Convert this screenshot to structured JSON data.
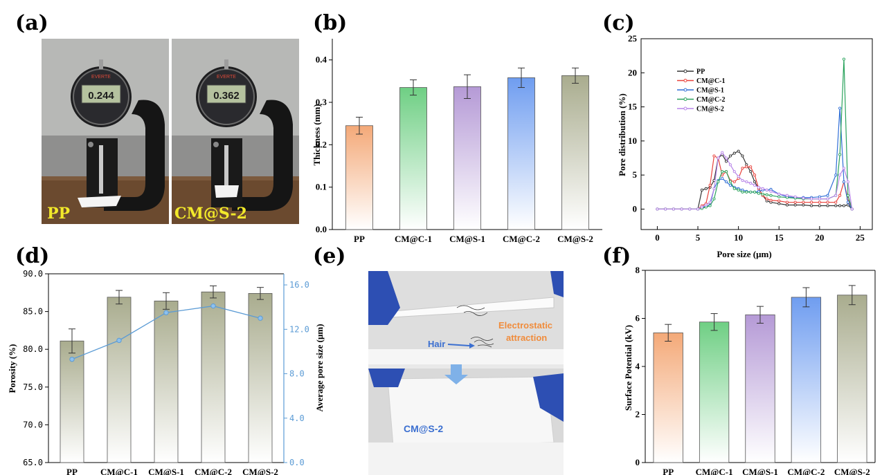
{
  "panels": {
    "a": {
      "label": "(a)",
      "photo_labels": [
        "PP",
        "CM@S-2"
      ],
      "gauge_readings": [
        "0.244",
        "0.362"
      ],
      "gauge_brand": "EVERTE"
    },
    "e": {
      "label": "(e)",
      "annotations": [
        "Electrostatic",
        "attraction",
        "Hair",
        "CM@S-2"
      ]
    }
  },
  "colors": {
    "pp": "#f4a978",
    "cmc1": "#6fcf84",
    "cms1": "#b59ad6",
    "cmc2": "#6f9df0",
    "cms2": "#a9ac8e",
    "line_blue": "#5b9bd5"
  },
  "chart_data": [
    {
      "id": "b",
      "label": "(b)",
      "type": "bar",
      "categories": [
        "PP",
        "CM@C-1",
        "CM@S-1",
        "CM@C-2",
        "CM@S-2"
      ],
      "values": [
        0.245,
        0.335,
        0.337,
        0.358,
        0.363
      ],
      "errors": [
        0.02,
        0.018,
        0.028,
        0.023,
        0.018
      ],
      "ylabel": "Thickness (mm)",
      "ylim": [
        0,
        0.45
      ],
      "yticks": [
        "0.0",
        "0.1",
        "0.2",
        "0.3",
        "0.4"
      ]
    },
    {
      "id": "c",
      "label": "(c)",
      "type": "line",
      "xlabel": "Pore size (μm)",
      "ylabel": "Pore distribution (%)",
      "xlim": [
        -2,
        26.5
      ],
      "ylim": [
        -3,
        25
      ],
      "xticks": [
        "0",
        "5",
        "10",
        "15",
        "20",
        "25"
      ],
      "yticks": [
        "0",
        "5",
        "10",
        "15",
        "20",
        "25"
      ],
      "legend_placement": "upper-left",
      "series": [
        {
          "name": "PP",
          "color": "#333333",
          "x": [
            0,
            1,
            2,
            3,
            4,
            5,
            5.5,
            6,
            6.5,
            7,
            7.5,
            8,
            8.5,
            9,
            9.5,
            10,
            10.5,
            11,
            11.5,
            12,
            12.5,
            13,
            13.5,
            14,
            15,
            16,
            17,
            18,
            19,
            20,
            21,
            22,
            22.5,
            23,
            23.5,
            24
          ],
          "y": [
            0,
            0,
            0,
            0,
            0,
            0,
            2.8,
            3,
            3.2,
            4.2,
            7.5,
            8,
            7,
            7.8,
            8.2,
            8.5,
            7.8,
            6.5,
            5.5,
            4,
            3,
            2,
            1.2,
            1,
            0.8,
            0.6,
            0.6,
            0.6,
            0.5,
            0.5,
            0.5,
            0.5,
            0.5,
            0.5,
            0.6,
            0
          ]
        },
        {
          "name": "CM@C-1",
          "color": "#e8423c",
          "x": [
            0,
            1,
            2,
            3,
            4,
            5,
            5.5,
            6,
            6.5,
            7,
            7.5,
            8,
            8.5,
            9,
            9.5,
            10,
            10.5,
            11,
            11.5,
            12,
            12.5,
            13,
            13.5,
            14,
            15,
            16,
            17,
            18,
            19,
            20,
            21,
            22,
            22.5,
            23,
            23.5,
            24
          ],
          "y": [
            0,
            0,
            0,
            0,
            0,
            0,
            0.5,
            0.8,
            3.5,
            7.8,
            7.5,
            5,
            5.5,
            4.2,
            4,
            4.5,
            6,
            6.2,
            6.2,
            5,
            3,
            2,
            1.5,
            1.3,
            1.2,
            1,
            1,
            1,
            1,
            1,
            1,
            1,
            2,
            4,
            1.5,
            0
          ]
        },
        {
          "name": "CM@S-1",
          "color": "#2f6ed6",
          "x": [
            0,
            1,
            2,
            3,
            4,
            5,
            5.5,
            6,
            6.5,
            7,
            7.5,
            8,
            8.5,
            9,
            9.5,
            10,
            10.5,
            11,
            11.5,
            12,
            12.5,
            13,
            13.5,
            14,
            15,
            16,
            17,
            18,
            19,
            20,
            21,
            22,
            22.5,
            23,
            23.5,
            24
          ],
          "y": [
            0,
            0,
            0,
            0,
            0,
            0,
            0.2,
            0.4,
            0.6,
            3,
            4.2,
            4.5,
            4,
            3.5,
            3.2,
            3,
            2.8,
            2.6,
            2.5,
            2.5,
            2.6,
            2.8,
            2.8,
            2.9,
            2.2,
            1.8,
            1.7,
            1.7,
            1.7,
            1.8,
            2,
            5,
            14.8,
            4,
            1,
            0
          ]
        },
        {
          "name": "CM@C-2",
          "color": "#2aa35c",
          "x": [
            0,
            1,
            2,
            3,
            4,
            5,
            5.5,
            6,
            6.5,
            7,
            7.5,
            8,
            8.5,
            9,
            9.5,
            10,
            10.5,
            11,
            11.5,
            12,
            12.5,
            13,
            13.5,
            14,
            15,
            16,
            17,
            18,
            19,
            20,
            21,
            22,
            22.5,
            23,
            23.5,
            24
          ],
          "y": [
            0,
            0,
            0,
            0,
            0,
            0,
            0.1,
            0.3,
            0.5,
            1.5,
            4,
            5.5,
            5.5,
            4,
            3,
            2.8,
            2.5,
            2.5,
            2.5,
            2.5,
            2.3,
            2.2,
            2.1,
            2,
            1.8,
            1.7,
            1.6,
            1.5,
            1.5,
            1.5,
            1.5,
            2,
            8,
            22,
            2,
            0
          ]
        },
        {
          "name": "CM@S-2",
          "color": "#b784e8",
          "x": [
            0,
            1,
            2,
            3,
            4,
            5,
            5.5,
            6,
            6.5,
            7,
            7.5,
            8,
            8.5,
            9,
            9.5,
            10,
            10.5,
            11,
            11.5,
            12,
            12.5,
            13,
            13.5,
            14,
            15,
            16,
            17,
            18,
            19,
            20,
            21,
            22,
            22.5,
            23,
            23.5,
            24
          ],
          "y": [
            0,
            0,
            0,
            0,
            0,
            0,
            0.3,
            0.6,
            1,
            3,
            7.5,
            8.3,
            7.5,
            6.5,
            5.5,
            4.8,
            4.2,
            4,
            3.8,
            3.5,
            3.2,
            3,
            2.8,
            2.6,
            2.2,
            2,
            1.8,
            1.6,
            1.5,
            1.5,
            1.5,
            2,
            5,
            6,
            4,
            0
          ]
        }
      ]
    },
    {
      "id": "d",
      "label": "(d)",
      "type": "bar",
      "categories": [
        "PP",
        "CM@C-1",
        "CM@S-1",
        "CM@C-2",
        "CM@S-2"
      ],
      "values": [
        81.1,
        86.9,
        86.4,
        87.6,
        87.4
      ],
      "errors": [
        1.6,
        0.9,
        1.1,
        0.8,
        0.8
      ],
      "ylabel": "Porosity (%)",
      "ylim": [
        65,
        90
      ],
      "yticks": [
        "65.0",
        "70.0",
        "75.0",
        "80.0",
        "85.0",
        "90.0"
      ],
      "y2label": "Average pore size (μm)",
      "y2lim": [
        0,
        17
      ],
      "y2ticks": [
        "0.0",
        "4.0",
        "8.0",
        "12.0",
        "16.0"
      ],
      "line_values": [
        9.3,
        11.0,
        13.5,
        14.1,
        13.0
      ]
    },
    {
      "id": "f",
      "label": "(f)",
      "type": "bar",
      "categories": [
        "PP",
        "CM@C-1",
        "CM@S-1",
        "CM@C-2",
        "CM@S-2"
      ],
      "values": [
        5.4,
        5.85,
        6.15,
        6.88,
        6.97
      ],
      "errors": [
        0.35,
        0.35,
        0.35,
        0.4,
        0.4
      ],
      "ylabel": "Surface Potential (kV)",
      "ylim": [
        0,
        8
      ],
      "yticks": [
        "0",
        "2",
        "4",
        "6",
        "8"
      ]
    }
  ]
}
